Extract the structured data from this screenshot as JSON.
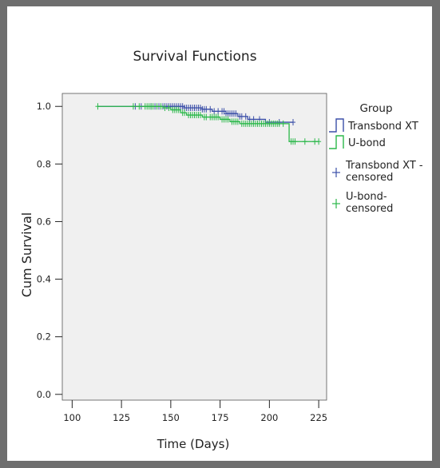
{
  "chart_data": {
    "type": "line",
    "title": "Survival Functions",
    "xlabel": "Time (Days)",
    "ylabel": "Cum Survival",
    "xlim": [
      95,
      229
    ],
    "ylim": [
      -0.02,
      1.045
    ],
    "xticks": [
      100,
      125,
      150,
      175,
      200,
      225
    ],
    "yticks": [
      0.0,
      0.2,
      0.4,
      0.6,
      0.8,
      1.0
    ],
    "xtick_labels": [
      "100",
      "125",
      "150",
      "175",
      "200",
      "225"
    ],
    "ytick_labels": [
      "0.0",
      "0.2",
      "0.4",
      "0.6",
      "0.8",
      "1.0"
    ],
    "grid": false,
    "legend_position": "right",
    "legend_title": "Group",
    "series": [
      {
        "name": "Transbond XT",
        "color": "#3b4fa8",
        "steps": [
          [
            113,
            1.0
          ],
          [
            157,
            0.995
          ],
          [
            166,
            0.99
          ],
          [
            171,
            0.983
          ],
          [
            178,
            0.975
          ],
          [
            184,
            0.965
          ],
          [
            189,
            0.955
          ],
          [
            198,
            0.945
          ],
          [
            212,
            0.945
          ]
        ],
        "censored": [
          132,
          135,
          140,
          142,
          144,
          146,
          147,
          148,
          149,
          150,
          151,
          152,
          153,
          154,
          155,
          156,
          157,
          158,
          159,
          160,
          161,
          162,
          163,
          164,
          165,
          166,
          167,
          168,
          170,
          172,
          174,
          176,
          177,
          178,
          179,
          180,
          181,
          182,
          183,
          185,
          186,
          188,
          190,
          192,
          195,
          200,
          205,
          212
        ]
      },
      {
        "name": "U-bond",
        "color": "#2bb84a",
        "steps": [
          [
            113,
            1.0
          ],
          [
            146,
            0.995
          ],
          [
            150,
            0.988
          ],
          [
            155,
            0.978
          ],
          [
            158,
            0.97
          ],
          [
            166,
            0.963
          ],
          [
            175,
            0.955
          ],
          [
            180,
            0.947
          ],
          [
            185,
            0.94
          ],
          [
            210,
            0.878
          ],
          [
            225,
            0.878
          ]
        ],
        "censored": [
          113,
          131,
          134,
          137,
          138,
          139,
          140,
          141,
          143,
          145,
          147,
          149,
          151,
          152,
          153,
          154,
          156,
          157,
          159,
          160,
          161,
          162,
          163,
          164,
          165,
          167,
          168,
          170,
          171,
          172,
          173,
          174,
          176,
          177,
          178,
          179,
          181,
          182,
          183,
          184,
          186,
          187,
          188,
          189,
          190,
          191,
          192,
          193,
          194,
          195,
          196,
          197,
          198,
          199,
          200,
          201,
          202,
          203,
          204,
          205,
          207,
          211,
          212,
          213,
          218,
          223,
          225
        ]
      }
    ],
    "legend_entries": [
      {
        "label": "Transbond XT",
        "kind": "step",
        "color": "#3b4fa8"
      },
      {
        "label": "U-bond",
        "kind": "step",
        "color": "#2bb84a"
      },
      {
        "label": "Transbond XT - censored",
        "lines": [
          "Transbond XT -",
          "censored"
        ],
        "kind": "cross",
        "color": "#3b4fa8"
      },
      {
        "label": "U-bond-censored",
        "lines": [
          "U-bond-",
          "censored"
        ],
        "kind": "cross",
        "color": "#2bb84a"
      }
    ]
  }
}
